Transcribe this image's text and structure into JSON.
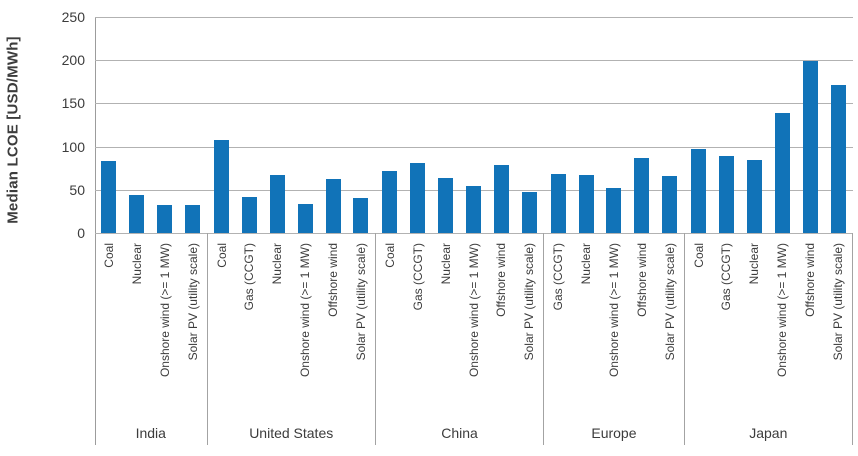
{
  "chart_data": {
    "type": "bar",
    "title": "",
    "xlabel": "",
    "ylabel": "Median LCOE [USD/MWh]",
    "ylim": [
      0,
      250
    ],
    "yticks": [
      0,
      50,
      100,
      150,
      200,
      250
    ],
    "grid": "horizontal",
    "legend": "none",
    "colors": {
      "bar": "#1173B8",
      "gridline": "#B2B2B2",
      "axis": "#9C9C9C",
      "divider": "#A3A3A3",
      "text": "#3C3C3C"
    },
    "groups": [
      {
        "label": "India",
        "bars": [
          {
            "category": "Coal",
            "value": 83
          },
          {
            "category": "Nuclear",
            "value": 44
          },
          {
            "category": "Onshore wind (>= 1 MW)",
            "value": 32
          },
          {
            "category": "Solar PV (utility scale)",
            "value": 32
          }
        ]
      },
      {
        "label": "United States",
        "bars": [
          {
            "category": "Coal",
            "value": 108
          },
          {
            "category": "Gas (CCGT)",
            "value": 42
          },
          {
            "category": "Nuclear",
            "value": 67
          },
          {
            "category": "Onshore wind (>= 1 MW)",
            "value": 34
          },
          {
            "category": "Offshore wind",
            "value": 63
          },
          {
            "category": "Solar PV (utility scale)",
            "value": 40
          }
        ]
      },
      {
        "label": "China",
        "bars": [
          {
            "category": "Coal",
            "value": 72
          },
          {
            "category": "Gas (CCGT)",
            "value": 81
          },
          {
            "category": "Nuclear",
            "value": 64
          },
          {
            "category": "Onshore wind (>= 1 MW)",
            "value": 54
          },
          {
            "category": "Offshore wind",
            "value": 79
          },
          {
            "category": "Solar PV (utility scale)",
            "value": 47
          }
        ]
      },
      {
        "label": "Europe",
        "bars": [
          {
            "category": "Gas (CCGT)",
            "value": 68
          },
          {
            "category": "Nuclear",
            "value": 67
          },
          {
            "category": "Onshore wind (>= 1 MW)",
            "value": 52
          },
          {
            "category": "Offshore wind",
            "value": 87
          },
          {
            "category": "Solar PV (utility scale)",
            "value": 66
          }
        ]
      },
      {
        "label": "Japan",
        "bars": [
          {
            "category": "Coal",
            "value": 97
          },
          {
            "category": "Gas (CCGT)",
            "value": 89
          },
          {
            "category": "Nuclear",
            "value": 84
          },
          {
            "category": "Onshore wind (>= 1 MW)",
            "value": 139
          },
          {
            "category": "Offshore wind",
            "value": 199
          },
          {
            "category": "Solar PV (utility scale)",
            "value": 171
          }
        ]
      }
    ]
  }
}
